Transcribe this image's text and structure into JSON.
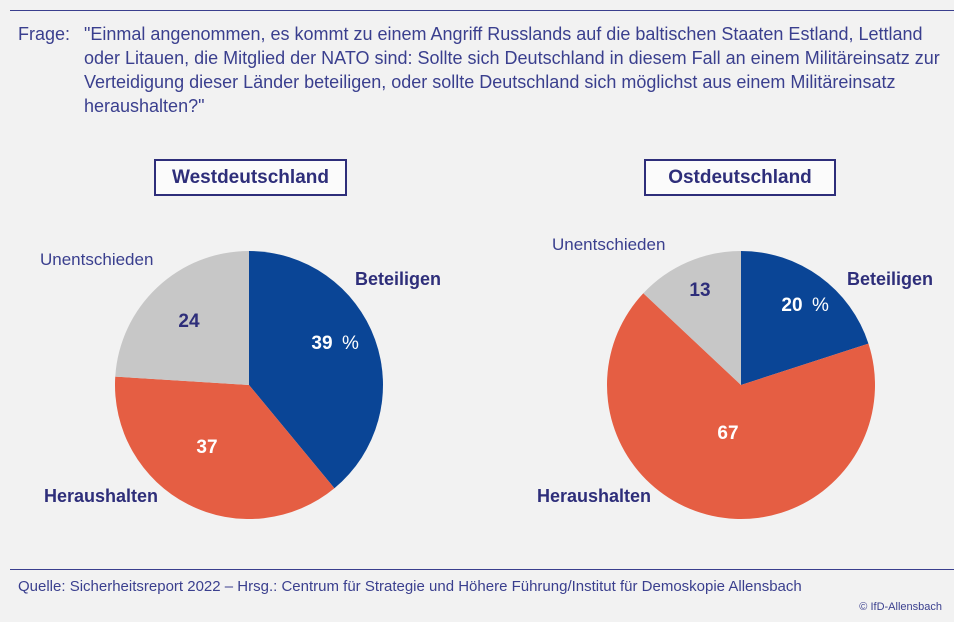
{
  "question": {
    "label": "Frage:",
    "text": "\"Einmal angenommen, es kommt zu einem Angriff Russlands auf die baltischen Staaten Estland, Lettland oder Litauen, die Mitglied der NATO sind: Sollte sich Deutschland in diesem Fall an einem Militäreinsatz zur Verteidigung dieser Länder beteiligen, oder sollte Deutschland sich möglichst aus einem Militäreinsatz heraushalten?\""
  },
  "footer": {
    "source": "Quelle: Sicherheitsreport 2022 – Hrsg.: Centrum für Strategie und Höhere Führung/Institut für Demoskopie Allensbach",
    "copyright": "© IfD-Allensbach"
  },
  "colors": {
    "beteiligen": "#0a4596",
    "heraushalten": "#e55e43",
    "unentschieden": "#c7c7c7",
    "title_text": "#2e2e7a",
    "question_text": "#3a3f8e"
  },
  "chart_data": [
    {
      "type": "pie",
      "title": "Westdeutschland",
      "unit": "%",
      "slices": [
        {
          "label": "Beteiligen",
          "value": 39,
          "display": "39",
          "color": "#0a4596"
        },
        {
          "label": "Heraushalten",
          "value": 37,
          "display": "37",
          "color": "#e55e43"
        },
        {
          "label": "Unentschieden",
          "value": 24,
          "display": "24",
          "color": "#c7c7c7"
        }
      ]
    },
    {
      "type": "pie",
      "title": "Ostdeutschland",
      "unit": "%",
      "slices": [
        {
          "label": "Beteiligen",
          "value": 20,
          "display": "20",
          "color": "#0a4596"
        },
        {
          "label": "Heraushalten",
          "value": 67,
          "display": "67",
          "color": "#e55e43"
        },
        {
          "label": "Unentschieden",
          "value": 13,
          "display": "13",
          "color": "#c7c7c7"
        }
      ]
    }
  ]
}
